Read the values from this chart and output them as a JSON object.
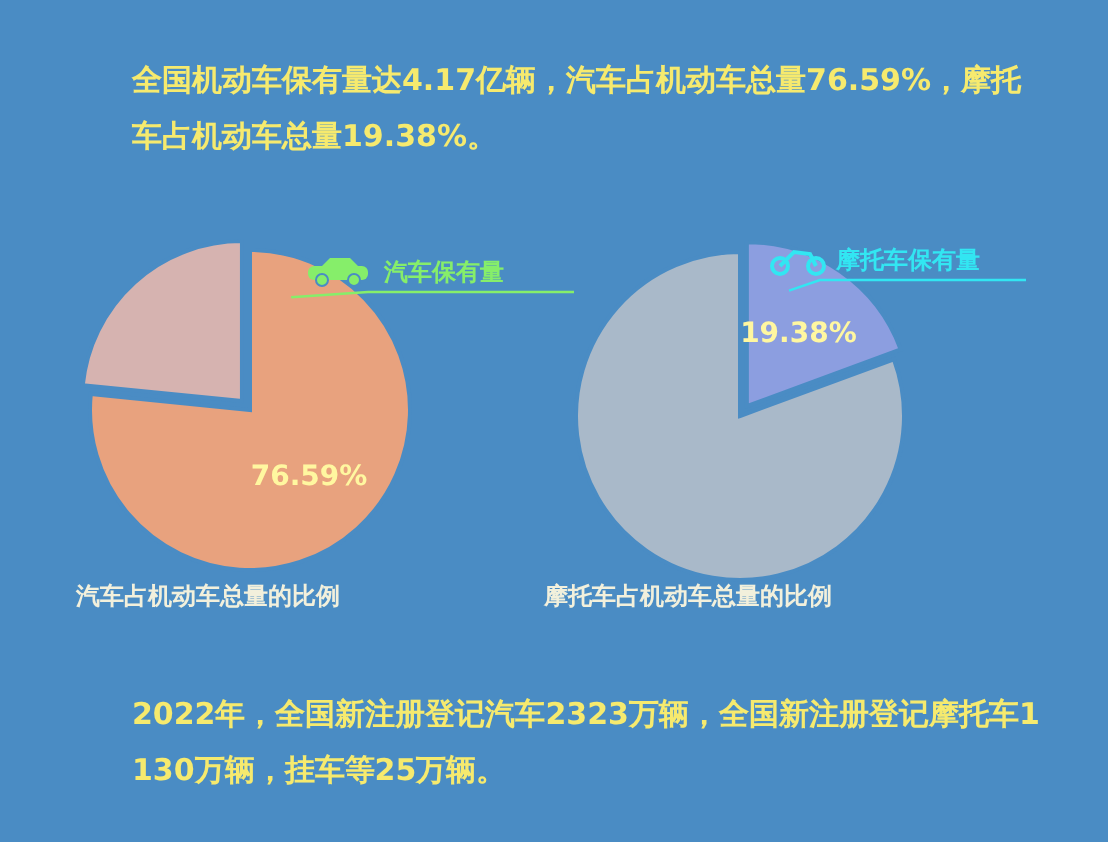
{
  "chart_data": [
    {
      "type": "pie",
      "title": "汽车占机动车总量的比例",
      "categories": [
        "汽车保有量",
        null
      ],
      "values": [
        76.59,
        23.41
      ],
      "colors": [
        "#e8a27e",
        "#d6b3b0"
      ],
      "value_labels": [
        "76.59%",
        null
      ],
      "annotations": [
        "全国机动车保有量达4.17亿辆，汽车占机动车总量76.59%，摩托车占机动车总量19.38%。"
      ]
    },
    {
      "type": "pie",
      "title": "摩托车占机动车总量的比例",
      "categories": [
        "摩托车保有量",
        null
      ],
      "values": [
        19.38,
        80.62
      ],
      "colors": [
        "#8c9ee0",
        "#a9b9c9"
      ],
      "value_labels": [
        "19.38%",
        null
      ],
      "annotations": [
        "2022年，全国新注册登记汽车2323万辆，全国新注册登记摩托车1130万辆，挂车等25万辆。"
      ]
    }
  ]
}
